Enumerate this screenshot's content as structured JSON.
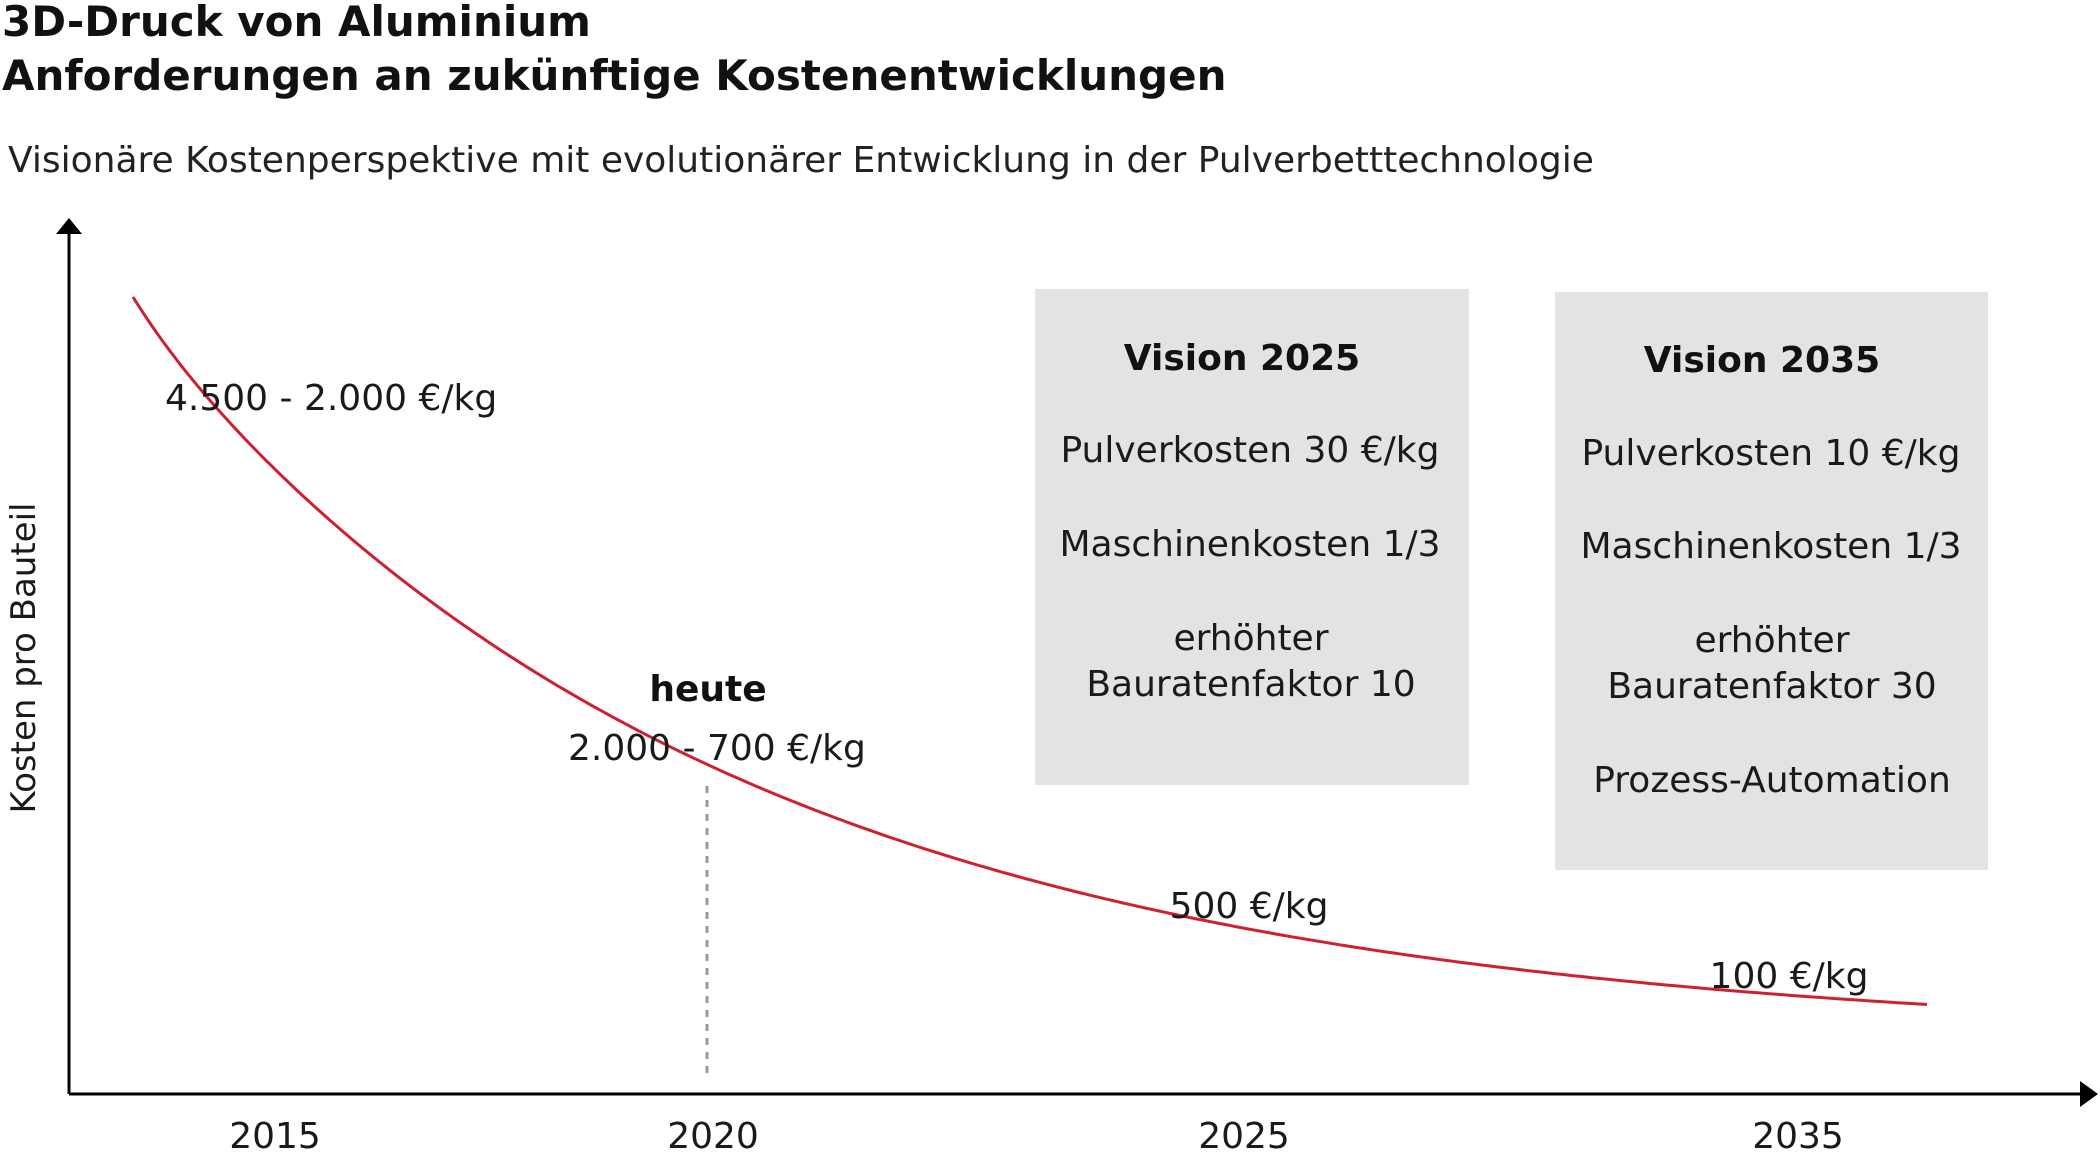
{
  "header": {
    "title_line1": "3D-Druck von Aluminium",
    "title_line2": "Anforderungen an zukünftige Kostenentwicklungen",
    "subtitle": "Visionäre Kostenperspektive mit evolutionärer Entwicklung in der Pulverbetttechnologie"
  },
  "colors": {
    "curve": "#d0202e",
    "axis": "#000000",
    "box": "#e3e3e3",
    "marker": "#9a9a9a"
  },
  "chart_data": {
    "type": "line",
    "ylabel": "Kosten pro Bauteil",
    "xlabel": "",
    "y_scale": "qualitative (no numeric ticks)",
    "x_ticks": [
      "2015",
      "2020",
      "2025",
      "2035"
    ],
    "series": [
      {
        "values_label_points": [
          {
            "x": "2015",
            "label": "4.500 - 2.000 €/kg"
          },
          {
            "x": "2020",
            "label": "2.000 - 700 €/kg"
          },
          {
            "x": "2025",
            "label": "500 €/kg"
          },
          {
            "x": "2035",
            "label": "100 €/kg"
          }
        ]
      }
    ],
    "marker": {
      "x": "2020",
      "label": "heute"
    },
    "grid": false,
    "legend": "none"
  },
  "vision_boxes": [
    {
      "title": "Vision 2025",
      "items": [
        "Pulverkosten 30 €/kg",
        "Maschinenkosten 1/3",
        "erhöhter",
        "Bauratenfaktor 10"
      ]
    },
    {
      "title": "Vision 2035",
      "items": [
        "Pulverkosten 10 €/kg",
        "Maschinenkosten 1/3",
        "erhöhter",
        "Bauratenfaktor 30",
        "Prozess-Automation"
      ]
    }
  ]
}
